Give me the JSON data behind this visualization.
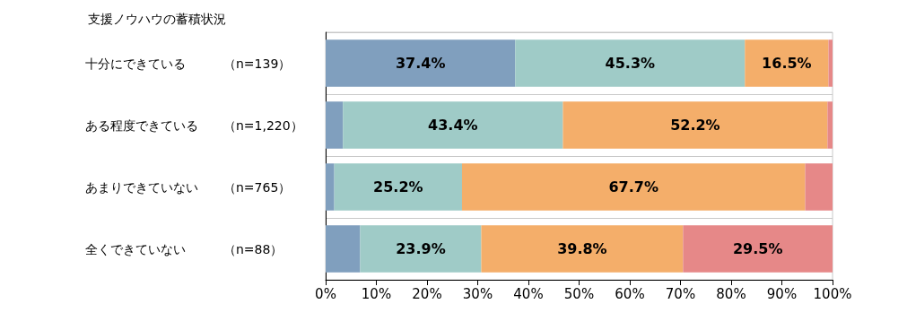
{
  "chart_data": {
    "type": "bar",
    "orientation": "horizontal",
    "stacked": true,
    "title": "支援ノウハウの蓄積状況",
    "categories": [
      "十分にできている　　　（n=139）",
      "ある程度できている　　（n=1,220）",
      "あまりできていない　　（n=765）",
      "全くできていない　　　（n=88）"
    ],
    "series": [
      {
        "color": "#809fbe",
        "values": [
          37.4,
          3.4,
          1.7,
          6.8
        ],
        "value_labels": [
          "37.4%",
          null,
          null,
          null
        ]
      },
      {
        "color": "#9fcbc7",
        "values": [
          45.3,
          43.4,
          25.2,
          23.9
        ],
        "value_labels": [
          "45.3%",
          "43.4%",
          "25.2%",
          "23.9%"
        ]
      },
      {
        "color": "#f4ae6a",
        "values": [
          16.5,
          52.2,
          67.7,
          39.8
        ],
        "value_labels": [
          "16.5%",
          "52.2%",
          "67.7%",
          "39.8%"
        ]
      },
      {
        "color": "#e68888",
        "values": [
          0.8,
          1.0,
          5.4,
          29.5
        ],
        "value_labels": [
          null,
          null,
          null,
          "29.5%"
        ]
      }
    ],
    "xlim": [
      0,
      100
    ],
    "xticks": [
      {
        "value": 0,
        "label": "0%"
      },
      {
        "value": 10,
        "label": "10%"
      },
      {
        "value": 20,
        "label": "20%"
      },
      {
        "value": 30,
        "label": "30%"
      },
      {
        "value": 40,
        "label": "40%"
      },
      {
        "value": 50,
        "label": "50%"
      },
      {
        "value": 60,
        "label": "60%"
      },
      {
        "value": 70,
        "label": "70%"
      },
      {
        "value": 80,
        "label": "80%"
      },
      {
        "value": 90,
        "label": "90%"
      },
      {
        "value": 100,
        "label": "100%"
      }
    ],
    "grid": "y"
  }
}
